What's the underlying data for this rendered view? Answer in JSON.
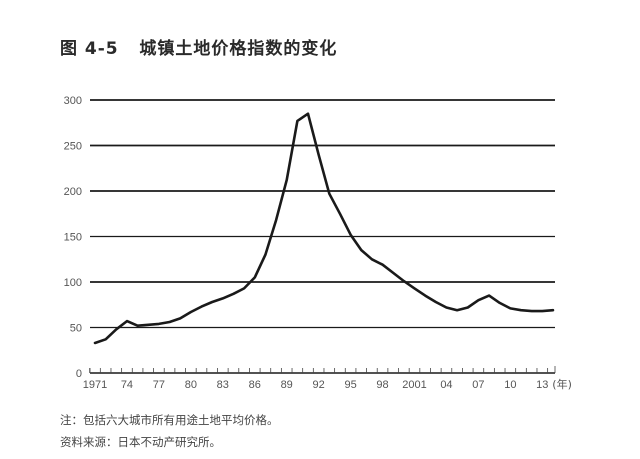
{
  "title": "图 4-5   城镇土地价格指数的变化",
  "notes": {
    "note": "注：包括六大城市所有用途土地平均价格。",
    "source": "资料来源：日本不动产研究所。"
  },
  "colors": {
    "line": "#1a1a1a",
    "grid": "#1a1a1a",
    "tick_text": "#555555"
  },
  "chart_data": {
    "type": "line",
    "title": "城镇土地价格指数的变化",
    "xlabel": "（年）",
    "ylabel": "",
    "ylim": [
      0,
      300
    ],
    "yticks": [
      0,
      50,
      100,
      150,
      200,
      250,
      300
    ],
    "xtick_labels": [
      "1971",
      "74",
      "77",
      "80",
      "83",
      "86",
      "89",
      "92",
      "95",
      "98",
      "2001",
      "04",
      "07",
      "10",
      "13"
    ],
    "xtick_years": [
      1971,
      1974,
      1977,
      1980,
      1983,
      1986,
      1989,
      1992,
      1995,
      1998,
      2001,
      2004,
      2007,
      2010,
      2013
    ],
    "x_unit_label": "(年)",
    "grid": "horizontal",
    "legend": "none",
    "series": [
      {
        "name": "城镇土地价格指数",
        "x": [
          1971,
          1972,
          1973,
          1974,
          1975,
          1976,
          1977,
          1978,
          1979,
          1980,
          1981,
          1982,
          1983,
          1984,
          1985,
          1986,
          1987,
          1988,
          1989,
          1990,
          1991,
          1992,
          1993,
          1994,
          1995,
          1996,
          1997,
          1998,
          1999,
          2000,
          2001,
          2002,
          2003,
          2004,
          2005,
          2006,
          2007,
          2008,
          2009,
          2010,
          2011,
          2012,
          2013,
          2014
        ],
        "values": [
          33,
          37,
          48,
          57,
          52,
          53,
          54,
          56,
          60,
          67,
          73,
          78,
          82,
          87,
          93,
          105,
          130,
          168,
          212,
          277,
          285,
          240,
          197,
          175,
          152,
          135,
          125,
          119,
          110,
          101,
          93,
          85,
          78,
          72,
          69,
          72,
          80,
          85,
          77,
          71,
          69,
          68,
          68,
          69
        ]
      }
    ]
  }
}
